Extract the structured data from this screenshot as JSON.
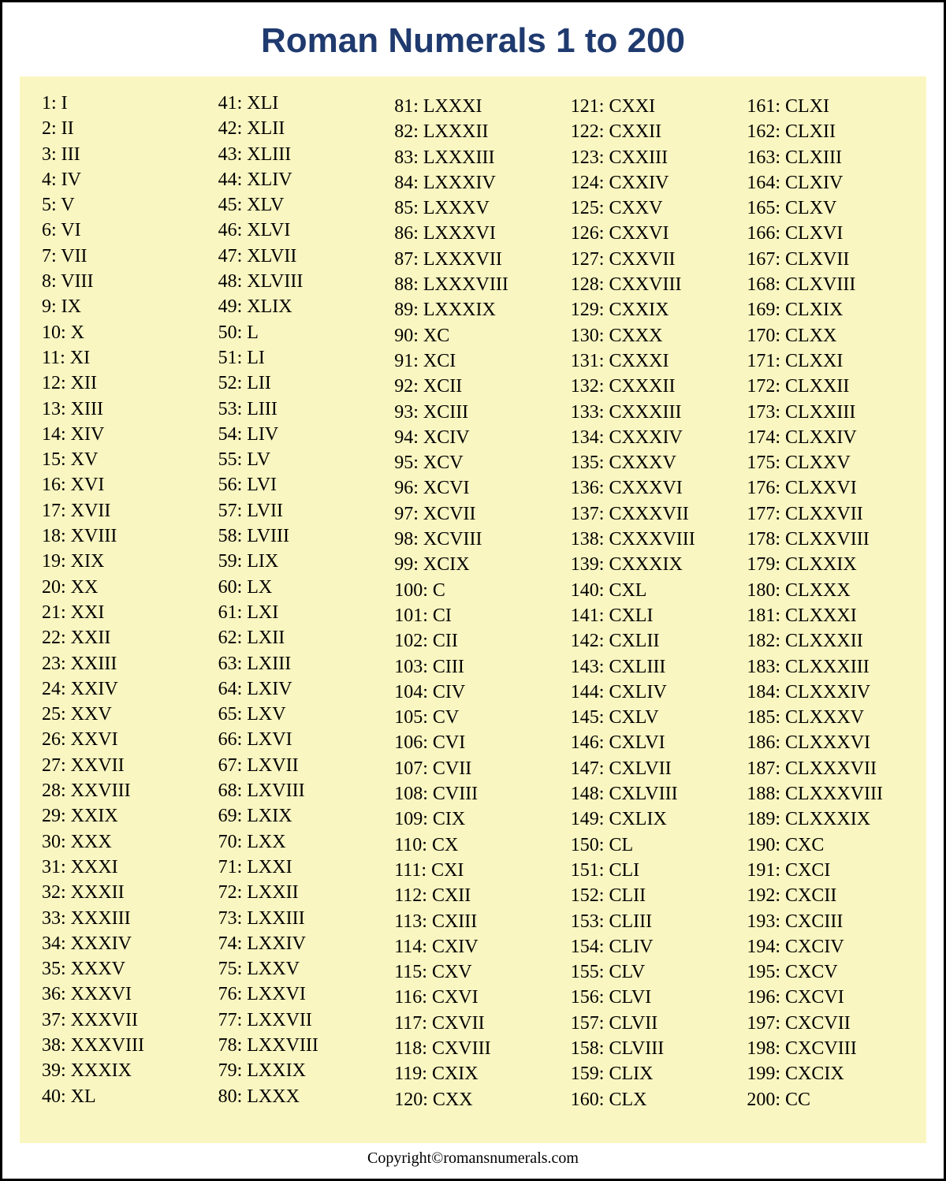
{
  "title": "Roman Numerals 1 to 200",
  "footer": "Copyright©romansnumerals.com",
  "colors": {
    "title_color": "#1f3a6e",
    "panel_background": "#faf6c1",
    "page_background": "#ffffff",
    "border_color": "#000000",
    "text_color": "#000000"
  },
  "typography": {
    "title_fontsize": 44,
    "entry_fontsize": 24,
    "footer_fontsize": 20,
    "title_family": "Arial",
    "body_family": "Times New Roman"
  },
  "layout": {
    "columns": 5,
    "rows_per_column": 40
  },
  "columns": [
    [
      "1: I",
      "2: II",
      "3: III",
      "4: IV",
      "5: V",
      "6: VI",
      "7: VII",
      "8: VIII",
      "9: IX",
      "10: X",
      "11: XI",
      "12: XII",
      "13: XIII",
      "14: XIV",
      "15: XV",
      "16: XVI",
      "17: XVII",
      "18: XVIII",
      "19: XIX",
      "20: XX",
      "21: XXI",
      "22: XXII",
      "23: XXIII",
      "24: XXIV",
      "25: XXV",
      "26: XXVI",
      "27: XXVII",
      "28: XXVIII",
      "29: XXIX",
      "30: XXX",
      "31: XXXI",
      "32: XXXII",
      "33: XXXIII",
      "34: XXXIV",
      "35: XXXV",
      "36: XXXVI",
      "37: XXXVII",
      "38: XXXVIII",
      "39: XXXIX",
      "40: XL"
    ],
    [
      "41: XLI",
      "42: XLII",
      "43: XLIII",
      "44: XLIV",
      "45: XLV",
      "46: XLVI",
      "47: XLVII",
      "48: XLVIII",
      "49: XLIX",
      "50: L",
      "51: LI",
      "52: LII",
      "53: LIII",
      "54: LIV",
      "55: LV",
      "56: LVI",
      "57: LVII",
      "58: LVIII",
      "59: LIX",
      "60: LX",
      "61: LXI",
      "62: LXII",
      "63: LXIII",
      "64: LXIV",
      "65: LXV",
      "66: LXVI",
      "67: LXVII",
      "68: LXVIII",
      "69: LXIX",
      "70: LXX",
      "71: LXXI",
      "72: LXXII",
      "73: LXXIII",
      "74: LXXIV",
      "75: LXXV",
      "76: LXXVI",
      "77: LXXVII",
      "78: LXXVIII",
      "79: LXXIX",
      "80: LXXX"
    ],
    [
      "81: LXXXI",
      "82: LXXXII",
      "83: LXXXIII",
      "84: LXXXIV",
      "85: LXXXV",
      "86: LXXXVI",
      "87: LXXXVII",
      "88: LXXXVIII",
      "89: LXXXIX",
      "90: XC",
      "91: XCI",
      "92: XCII",
      "93: XCIII",
      "94: XCIV",
      "95: XCV",
      "96: XCVI",
      "97: XCVII",
      "98: XCVIII",
      "99: XCIX",
      "100: C",
      "101: CI",
      "102: CII",
      "103: CIII",
      "104: CIV",
      "105: CV",
      "106: CVI",
      "107: CVII",
      "108: CVIII",
      "109: CIX",
      "110: CX",
      "111: CXI",
      "112: CXII",
      "113: CXIII",
      "114: CXIV",
      "115: CXV",
      "116: CXVI",
      "117: CXVII",
      "118: CXVIII",
      "119: CXIX",
      "120: CXX"
    ],
    [
      "121: CXXI",
      "122: CXXII",
      "123: CXXIII",
      "124: CXXIV",
      "125: CXXV",
      "126: CXXVI",
      "127: CXXVII",
      "128: CXXVIII",
      "129: CXXIX",
      "130: CXXX",
      "131: CXXXI",
      "132: CXXXII",
      "133: CXXXIII",
      "134: CXXXIV",
      "135: CXXXV",
      "136: CXXXVI",
      "137: CXXXVII",
      "138: CXXXVIII",
      "139: CXXXIX",
      "140: CXL",
      "141: CXLI",
      "142: CXLII",
      "143: CXLIII",
      "144: CXLIV",
      "145: CXLV",
      "146: CXLVI",
      "147: CXLVII",
      "148: CXLVIII",
      "149: CXLIX",
      "150: CL",
      "151: CLI",
      "152: CLII",
      "153: CLIII",
      "154: CLIV",
      "155: CLV",
      "156: CLVI",
      "157: CLVII",
      "158: CLVIII",
      "159: CLIX",
      "160: CLX"
    ],
    [
      "161: CLXI",
      "162: CLXII",
      "163: CLXIII",
      "164: CLXIV",
      "165: CLXV",
      "166: CLXVI",
      "167: CLXVII",
      "168: CLXVIII",
      "169: CLXIX",
      "170: CLXX",
      "171: CLXXI",
      "172: CLXXII",
      "173: CLXXIII",
      "174: CLXXIV",
      "175: CLXXV",
      "176: CLXXVI",
      "177: CLXXVII",
      "178: CLXXVIII",
      "179: CLXXIX",
      "180: CLXXX",
      "181: CLXXXI",
      "182: CLXXXII",
      "183: CLXXXIII",
      "184: CLXXXIV",
      "185: CLXXXV",
      "186: CLXXXVI",
      "187: CLXXXVII",
      "188: CLXXXVIII",
      "189: CLXXXIX",
      "190: CXC",
      "191: CXCI",
      "192: CXCII",
      "193: CXCIII",
      "194: CXCIV",
      "195: CXCV",
      "196: CXCVI",
      "197: CXCVII",
      "198: CXCVIII",
      "199: CXCIX",
      "200: CC"
    ]
  ]
}
